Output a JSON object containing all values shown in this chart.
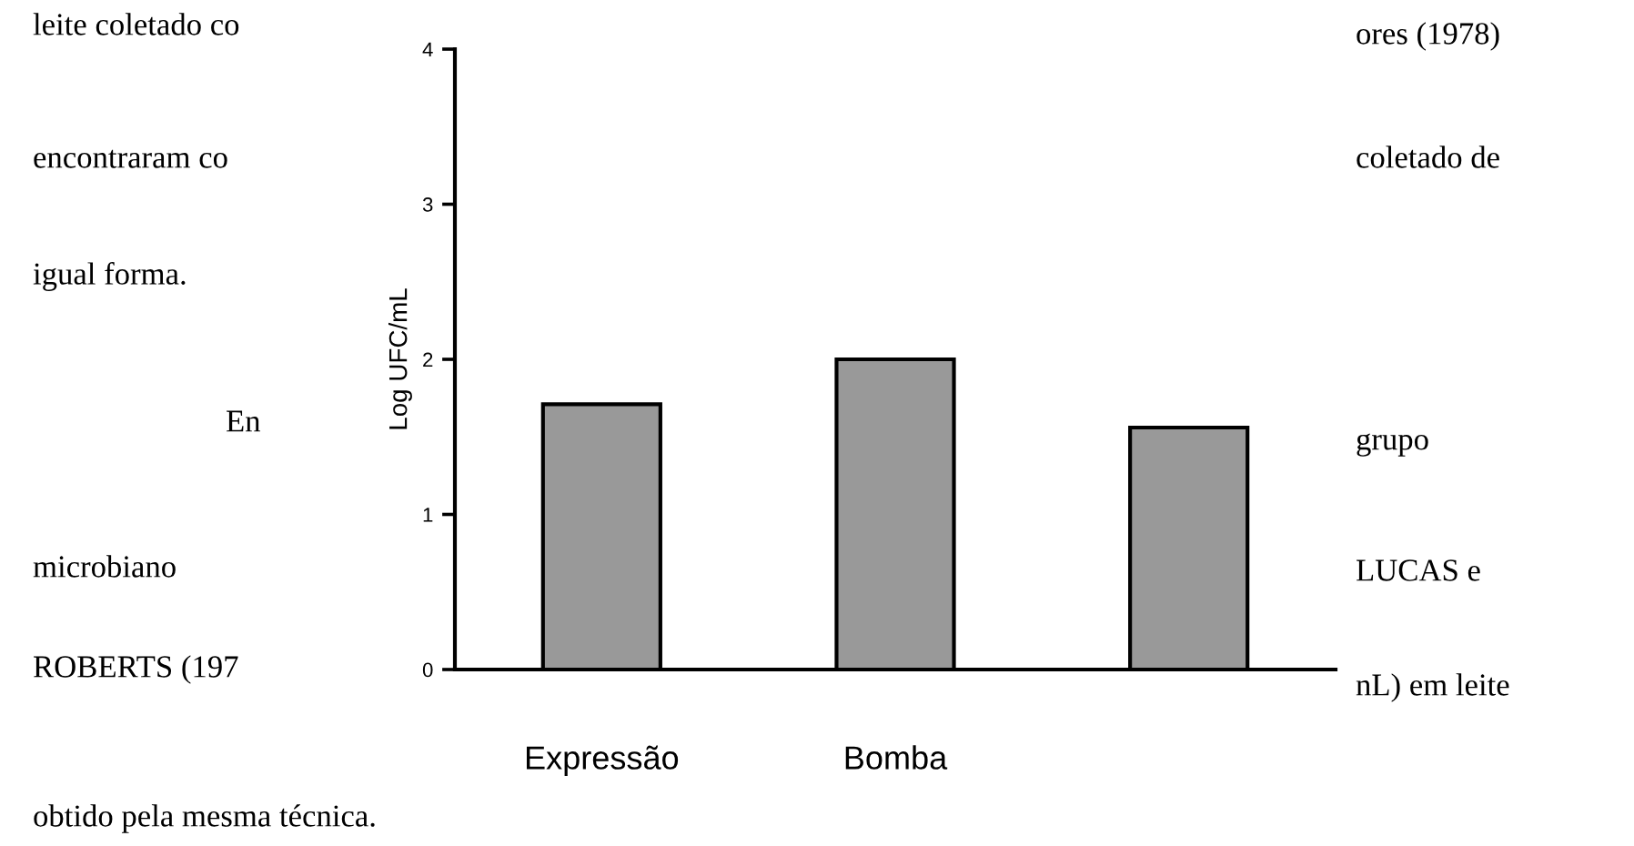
{
  "chart_data": {
    "type": "bar",
    "ylabel": "Log UFC/mL",
    "categories": [
      "Expressão",
      "Bomba",
      null
    ],
    "values": [
      1.71,
      2.0,
      1.56
    ],
    "color": "#999999",
    "ylim": [
      0,
      4
    ],
    "yticks": [
      0,
      1,
      2,
      3,
      4
    ],
    "grid": false,
    "annotations": [
      "leite coletado co",
      "encontraram co",
      "igual forma.",
      "En",
      "microbiano",
      "ROBERTS (197",
      "obtido pela mesma técnica.",
      "ores (1978)",
      "coletado de",
      "grupo",
      "LUCAS e",
      "nL) em leite"
    ]
  }
}
